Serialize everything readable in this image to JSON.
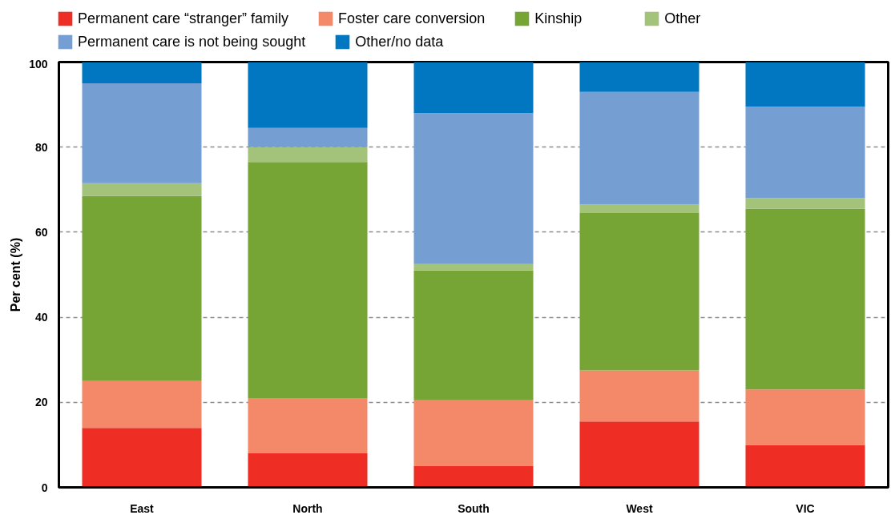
{
  "chart_data": {
    "type": "bar",
    "stacked": true,
    "ylabel": "Per cent (%)",
    "categories": [
      "East",
      "North",
      "South",
      "West",
      "VIC"
    ],
    "ylim": [
      0,
      100
    ],
    "yticks": [
      0,
      20,
      40,
      60,
      80,
      100
    ],
    "grid": "y",
    "legend": "top",
    "series": [
      {
        "name": "Permanent care “stranger” family",
        "color": "#ee2e24",
        "values": [
          14,
          8,
          5,
          15.5,
          10
        ]
      },
      {
        "name": "Foster care conversion",
        "color": "#f4896a",
        "values": [
          11,
          13,
          15.5,
          12,
          13
        ]
      },
      {
        "name": "Kinship",
        "color": "#76a535",
        "values": [
          43.5,
          55.5,
          30.5,
          37,
          42.5
        ]
      },
      {
        "name": "Other",
        "color": "#a3c27a",
        "values": [
          3,
          3.5,
          1.5,
          2,
          2.5
        ]
      },
      {
        "name": "Permanent care is not being sought",
        "color": "#759fd3",
        "values": [
          23.5,
          4.5,
          35.5,
          26.5,
          21.5
        ]
      },
      {
        "name": "Other/no data",
        "color": "#0077c0",
        "values": [
          5,
          15.5,
          12,
          7,
          10.5
        ]
      }
    ]
  }
}
